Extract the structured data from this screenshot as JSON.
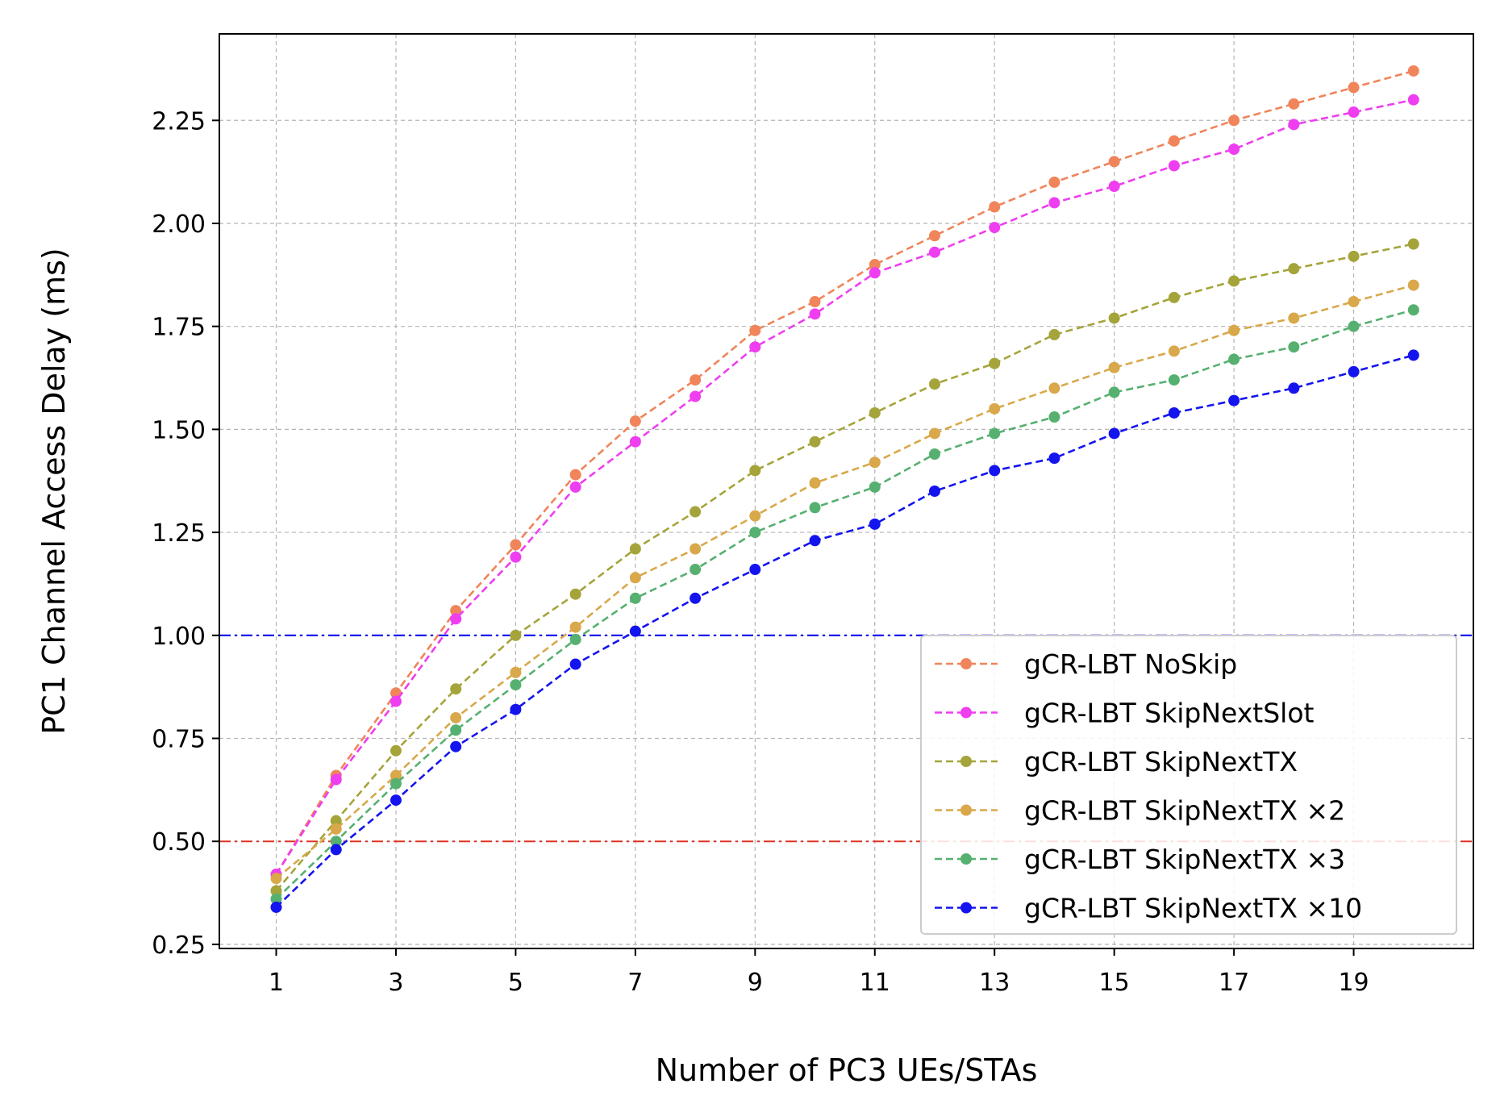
{
  "chart_data": {
    "type": "line",
    "title": "",
    "xlabel": "Number of PC3 UEs/STAs",
    "ylabel": "PC1 Channel Access Delay (ms)",
    "xlim": [
      0.05,
      21.0
    ],
    "ylim": [
      0.24,
      2.46
    ],
    "xticks": [
      1,
      3,
      5,
      7,
      9,
      11,
      13,
      15,
      17,
      19
    ],
    "xtick_labels": [
      "1",
      "3",
      "5",
      "7",
      "9",
      "11",
      "13",
      "15",
      "17",
      "19"
    ],
    "yticks": [
      0.25,
      0.5,
      0.75,
      1.0,
      1.25,
      1.5,
      1.75,
      2.0,
      2.25
    ],
    "ytick_labels": [
      "0.25",
      "0.50",
      "0.75",
      "1.00",
      "1.25",
      "1.50",
      "1.75",
      "2.00",
      "2.25"
    ],
    "grid": true,
    "legend_position": "lower-right",
    "x": [
      1,
      2,
      3,
      4,
      5,
      6,
      7,
      8,
      9,
      10,
      11,
      12,
      13,
      14,
      15,
      16,
      17,
      18,
      19,
      20
    ],
    "reference_lines": [
      {
        "y": 1.0,
        "color": "#0000ee",
        "style": "dash-dot"
      },
      {
        "y": 0.5,
        "color": "#e03020",
        "style": "dash-dot"
      }
    ],
    "series": [
      {
        "name": "gCR-LBT NoSkip",
        "color": "#f0845a",
        "values": [
          0.42,
          0.66,
          0.86,
          1.06,
          1.22,
          1.39,
          1.52,
          1.62,
          1.74,
          1.81,
          1.9,
          1.97,
          2.04,
          2.1,
          2.15,
          2.2,
          2.25,
          2.29,
          2.33,
          2.37
        ]
      },
      {
        "name": "gCR-LBT SkipNextSlot",
        "color": "#ee3ef0",
        "values": [
          0.42,
          0.65,
          0.84,
          1.04,
          1.19,
          1.36,
          1.47,
          1.58,
          1.7,
          1.78,
          1.88,
          1.93,
          1.99,
          2.05,
          2.09,
          2.14,
          2.18,
          2.24,
          2.27,
          2.3
        ]
      },
      {
        "name": "gCR-LBT SkipNextTX",
        "color": "#a4a43a",
        "values": [
          0.38,
          0.55,
          0.72,
          0.87,
          1.0,
          1.1,
          1.21,
          1.3,
          1.4,
          1.47,
          1.54,
          1.61,
          1.66,
          1.73,
          1.77,
          1.82,
          1.86,
          1.89,
          1.92,
          1.95
        ]
      },
      {
        "name": "gCR-LBT SkipNextTX ×2",
        "color": "#d8a84a",
        "values": [
          0.41,
          0.53,
          0.66,
          0.8,
          0.91,
          1.02,
          1.14,
          1.21,
          1.29,
          1.37,
          1.42,
          1.49,
          1.55,
          1.6,
          1.65,
          1.69,
          1.74,
          1.77,
          1.81,
          1.85
        ]
      },
      {
        "name": "gCR-LBT SkipNextTX ×3",
        "color": "#56b070",
        "values": [
          0.36,
          0.5,
          0.64,
          0.77,
          0.88,
          0.99,
          1.09,
          1.16,
          1.25,
          1.31,
          1.36,
          1.44,
          1.49,
          1.53,
          1.59,
          1.62,
          1.67,
          1.7,
          1.75,
          1.79
        ]
      },
      {
        "name": "gCR-LBT SkipNextTX ×10",
        "color": "#1414ee",
        "values": [
          0.34,
          0.48,
          0.6,
          0.73,
          0.82,
          0.93,
          1.01,
          1.09,
          1.16,
          1.23,
          1.27,
          1.35,
          1.4,
          1.43,
          1.49,
          1.54,
          1.57,
          1.6,
          1.64,
          1.68
        ]
      }
    ]
  }
}
